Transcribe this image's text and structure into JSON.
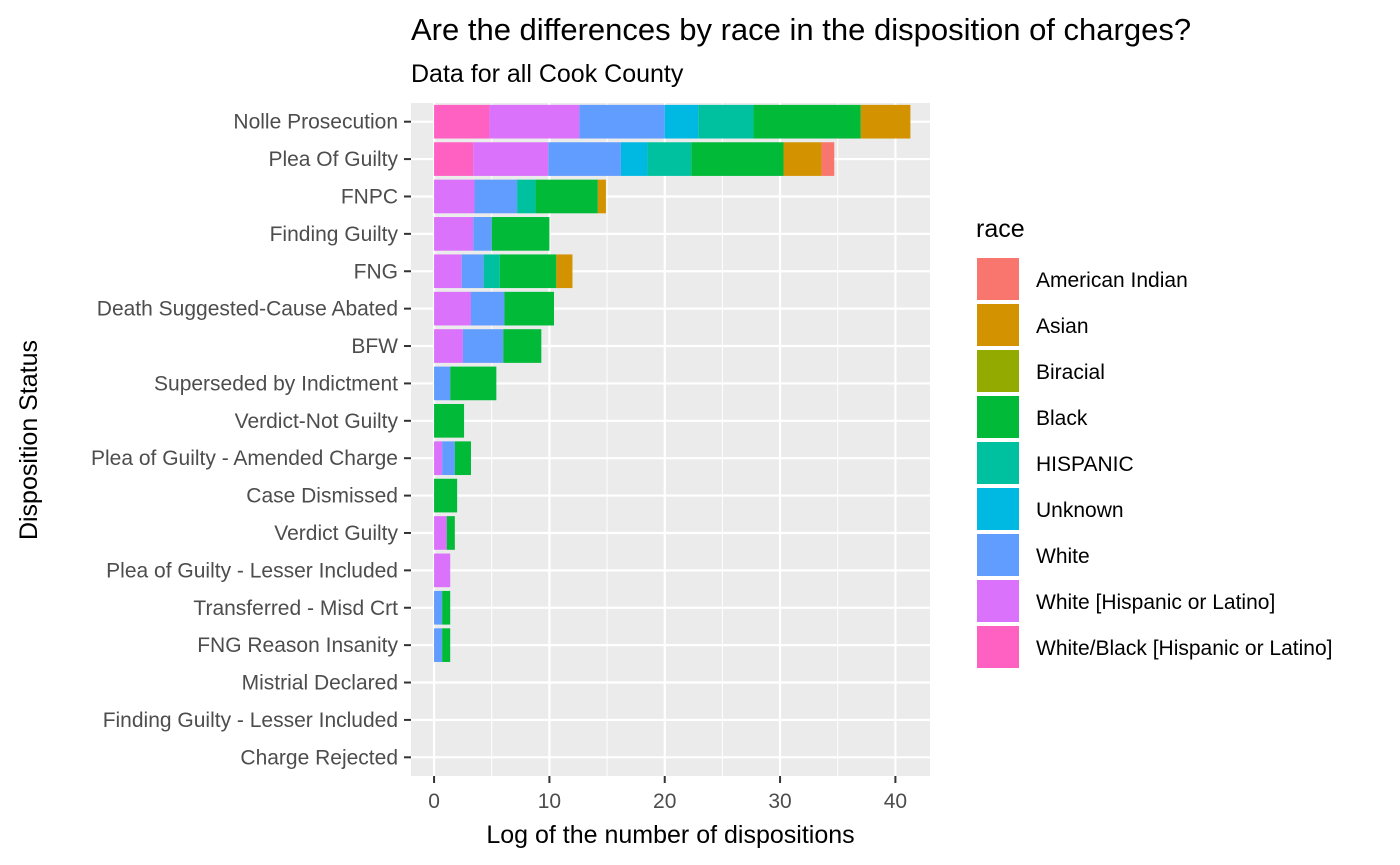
{
  "chart_data": {
    "type": "bar",
    "orientation": "horizontal",
    "stacked": true,
    "title": "Are the differences by race in the disposition of charges?",
    "subtitle": "Data for all Cook County",
    "xlabel": "Log of the number of dispositions",
    "ylabel": "Disposition Status",
    "xlim": [
      -2,
      43
    ],
    "x_ticks": [
      0,
      10,
      20,
      30,
      40
    ],
    "grid": true,
    "legend_title": "race",
    "legend_position": "right",
    "categories": [
      "Nolle Prosecution",
      "Plea Of Guilty",
      "FNPC",
      "Finding Guilty",
      "FNG",
      "Death Suggested-Cause Abated",
      "BFW",
      "Superseded by Indictment",
      "Verdict-Not Guilty",
      "Plea of Guilty - Amended Charge",
      "Case Dismissed",
      "Verdict Guilty",
      "Plea of Guilty - Lesser Included",
      "Transferred - Misd Crt",
      "FNG Reason Insanity",
      "Mistrial Declared",
      "Finding Guilty - Lesser Included",
      "Charge Rejected"
    ],
    "series": [
      {
        "name": "White/Black [Hispanic or Latino]",
        "color": "#FF61C3",
        "values": [
          4.8,
          3.4,
          0,
          0,
          0,
          0,
          0,
          0,
          0,
          0,
          0,
          0,
          0,
          0,
          0,
          0,
          0,
          0
        ]
      },
      {
        "name": "White [Hispanic or Latino]",
        "color": "#DB72FB",
        "values": [
          7.8,
          6.5,
          3.5,
          3.4,
          2.4,
          3.2,
          2.5,
          0,
          0,
          0.7,
          0,
          1.1,
          1.4,
          0,
          0,
          0,
          0,
          0
        ]
      },
      {
        "name": "White",
        "color": "#619CFF",
        "values": [
          7.4,
          6.3,
          3.7,
          1.6,
          1.9,
          2.9,
          3.5,
          1.4,
          0,
          1.1,
          0,
          0,
          0,
          0.7,
          0.7,
          0,
          0,
          0
        ]
      },
      {
        "name": "Unknown",
        "color": "#00B9E3",
        "values": [
          2.9,
          2.3,
          0,
          0,
          0,
          0,
          0,
          0,
          0,
          0,
          0,
          0,
          0,
          0,
          0,
          0,
          0,
          0
        ]
      },
      {
        "name": "HISPANIC",
        "color": "#00C19F",
        "values": [
          4.8,
          3.8,
          1.6,
          0,
          1.4,
          0,
          0,
          0,
          0,
          0,
          0,
          0,
          0,
          0,
          0,
          0,
          0,
          0
        ]
      },
      {
        "name": "Black",
        "color": "#00BA38",
        "values": [
          9.3,
          8.0,
          5.4,
          5.0,
          4.9,
          4.3,
          3.3,
          4.0,
          2.6,
          1.4,
          2.0,
          0.7,
          0,
          0.7,
          0.7,
          0,
          0,
          0
        ]
      },
      {
        "name": "Biracial",
        "color": "#93AA00",
        "values": [
          0,
          0,
          0,
          0,
          0,
          0,
          0,
          0,
          0,
          0,
          0,
          0,
          0,
          0,
          0,
          0,
          0,
          0
        ]
      },
      {
        "name": "Asian",
        "color": "#D39200",
        "values": [
          4.3,
          3.3,
          0.7,
          0,
          1.4,
          0,
          0,
          0,
          0,
          0,
          0,
          0,
          0,
          0,
          0,
          0,
          0,
          0
        ]
      },
      {
        "name": "American Indian",
        "color": "#F8766D",
        "values": [
          0,
          1.1,
          0,
          0,
          0,
          0,
          0,
          0,
          0,
          0,
          0,
          0,
          0,
          0,
          0,
          0,
          0,
          0
        ]
      }
    ],
    "legend_order": [
      "American Indian",
      "Asian",
      "Biracial",
      "Black",
      "HISPANIC",
      "Unknown",
      "White",
      "White [Hispanic or Latino]",
      "White/Black [Hispanic or Latino]"
    ]
  }
}
